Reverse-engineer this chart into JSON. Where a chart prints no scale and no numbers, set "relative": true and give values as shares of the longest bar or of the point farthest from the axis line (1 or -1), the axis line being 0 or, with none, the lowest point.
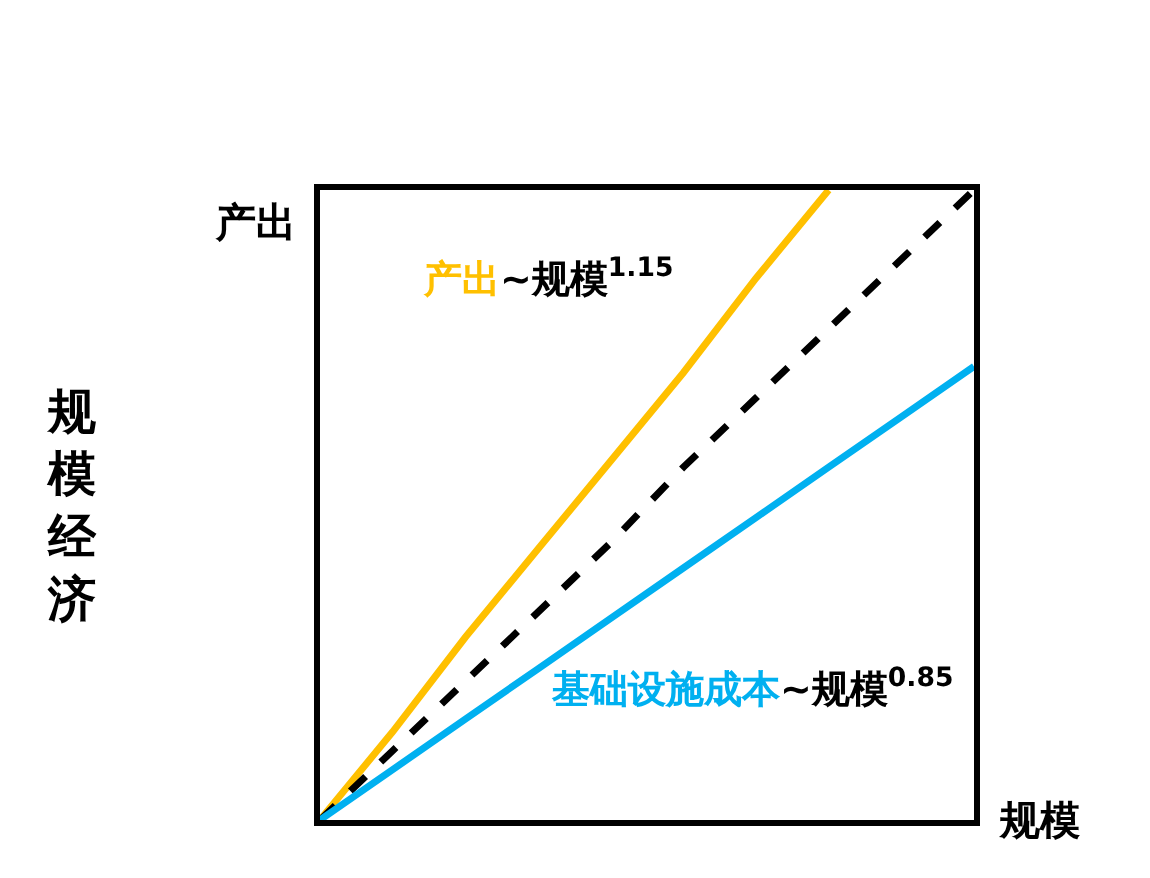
{
  "chart_data": {
    "type": "line",
    "title": "规模经济",
    "xlabel": "规模",
    "ylabel": "产出",
    "relative": true,
    "legend": false,
    "marker": "none",
    "categories": [
      null,
      null,
      null,
      null,
      null,
      null,
      null,
      null,
      null,
      null
    ],
    "series": [
      {
        "name": "产出~规模$^{1.15}$",
        "color": "#ffc000",
        "values": [
          0,
          0.14,
          0.29,
          0.43,
          0.57,
          0.71,
          0.86,
          1,
          null,
          null
        ],
        "line_style": "solid"
      },
      {
        "color": "#000000",
        "values": [
          0,
          0.11,
          0.22,
          0.33,
          0.44,
          0.56,
          0.67,
          0.78,
          0.89,
          1
        ],
        "line_style": "dashed"
      },
      {
        "name": "基础设施成本~规模$^{0.85}$",
        "color": "#00b0f0",
        "values": [
          0,
          0.08,
          0.16,
          0.24,
          0.32,
          0.4,
          0.48,
          0.56,
          0.64,
          0.72
        ],
        "line_style": "solid"
      }
    ]
  }
}
